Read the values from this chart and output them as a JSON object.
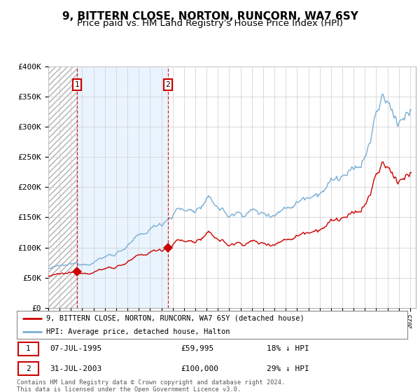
{
  "title": "9, BITTERN CLOSE, NORTON, RUNCORN, WA7 6SY",
  "subtitle": "Price paid vs. HM Land Registry's House Price Index (HPI)",
  "ylim": [
    0,
    400000
  ],
  "yticks": [
    0,
    50000,
    100000,
    150000,
    200000,
    250000,
    300000,
    350000,
    400000
  ],
  "ytick_labels": [
    "£0",
    "£50K",
    "£100K",
    "£150K",
    "£200K",
    "£250K",
    "£300K",
    "£350K",
    "£400K"
  ],
  "xlim_min": 1993,
  "xlim_max": 2025.5,
  "price_paid_color": "#cc0000",
  "hpi_color": "#7aafd4",
  "legend_label_price": "9, BITTERN CLOSE, NORTON, RUNCORN, WA7 6SY (detached house)",
  "legend_label_hpi": "HPI: Average price, detached house, Halton",
  "transaction1_date": "07-JUL-1995",
  "transaction1_price": "£59,995",
  "transaction1_hpi": "18% ↓ HPI",
  "transaction2_date": "31-JUL-2003",
  "transaction2_price": "£100,000",
  "transaction2_hpi": "29% ↓ HPI",
  "footer": "Contains HM Land Registry data © Crown copyright and database right 2024.\nThis data is licensed under the Open Government Licence v3.0.",
  "vline1_x": 1995.52,
  "vline2_x": 2003.58,
  "t1_price": 59995,
  "t2_price": 100000,
  "title_fontsize": 11,
  "subtitle_fontsize": 9.5,
  "hpi_seed": 12345
}
